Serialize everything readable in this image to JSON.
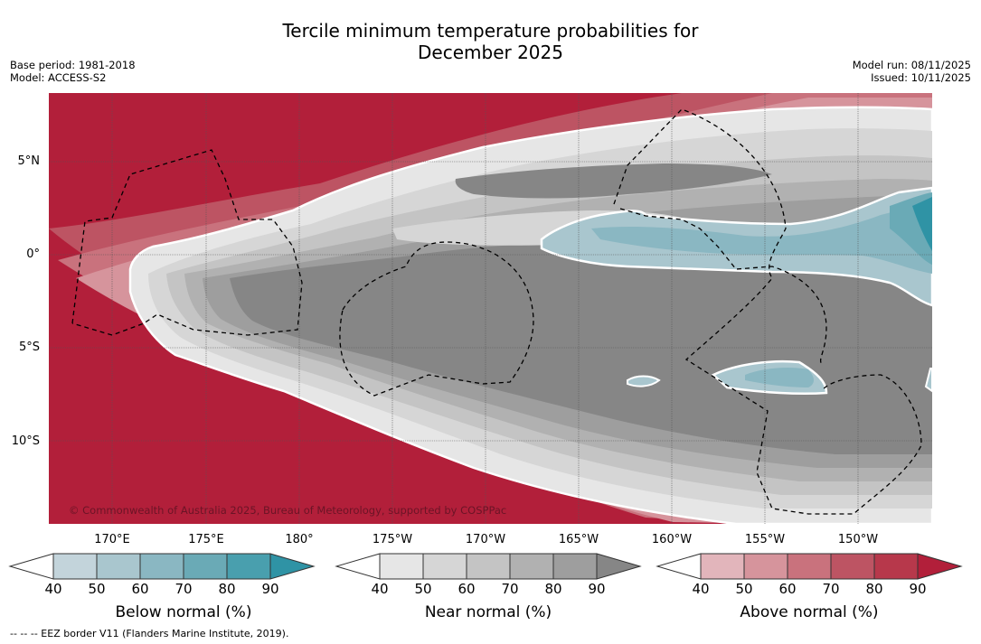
{
  "title_line1": "Tercile minimum temperature probabilities for",
  "title_line2": "December 2025",
  "meta": {
    "base_period": "Base period: 1981-2018",
    "model": "Model: ACCESS-S2",
    "model_run": "Model run: 08/11/2025",
    "issued": "Issued: 10/11/2025"
  },
  "copyright": "© Commonwealth of Australia 2025, Bureau of Meteorology, supported by COSPPac",
  "lat_labels": [
    "5°N",
    "0°",
    "5°S",
    "10°S"
  ],
  "lon_labels": [
    "170°E",
    "175°E",
    "180°",
    "175°W",
    "170°W",
    "165°W",
    "160°W",
    "155°W",
    "150°W"
  ],
  "colorbars": [
    {
      "name": "below",
      "title": "Below normal (%)",
      "ticks": [
        "40",
        "50",
        "60",
        "70",
        "80",
        "90"
      ],
      "colors": [
        "#c3d4db",
        "#a9c6ce",
        "#8ab7c2",
        "#6aaab6",
        "#499fae",
        "#2f93a5"
      ]
    },
    {
      "name": "near",
      "title": "Near normal (%)",
      "ticks": [
        "40",
        "50",
        "60",
        "70",
        "80",
        "90"
      ],
      "colors": [
        "#e6e6e6",
        "#d6d6d6",
        "#c4c4c4",
        "#b1b1b1",
        "#9e9e9e",
        "#868686"
      ]
    },
    {
      "name": "above",
      "title": "Above normal (%)",
      "ticks": [
        "40",
        "50",
        "60",
        "70",
        "80",
        "90"
      ],
      "colors": [
        "#e2b5bb",
        "#d6949c",
        "#c9727d",
        "#bd5463",
        "#b7384b",
        "#b21f3a"
      ]
    }
  ],
  "footnote": "-- -- -- EEZ border V11 (Flanders Marine Institute, 2019)."
}
